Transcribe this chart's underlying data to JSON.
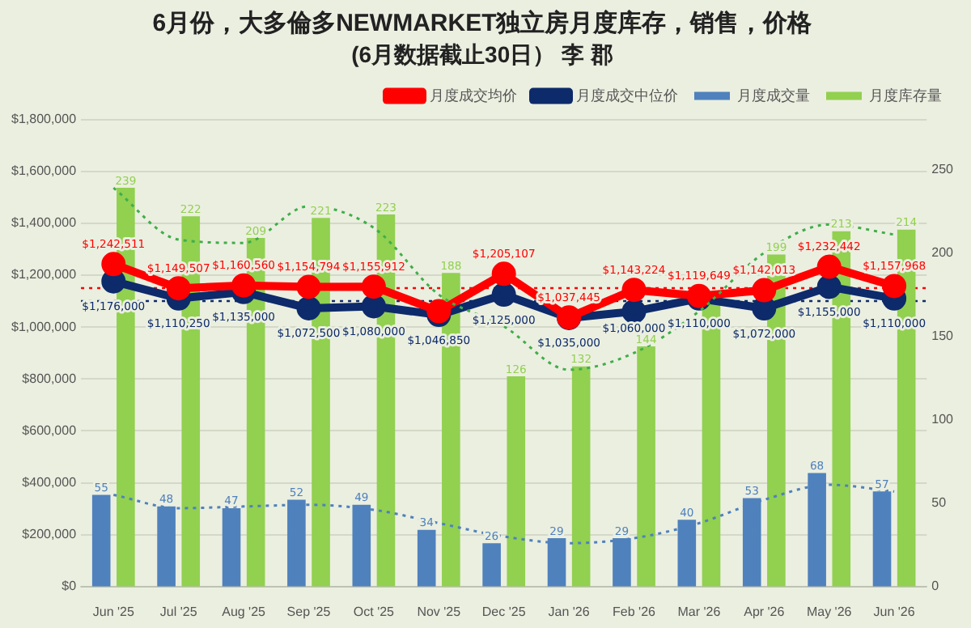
{
  "chart_data": {
    "type": "bar",
    "title": "6月份，大多倫多NEWMARKET独立房月度库存，销售，价格",
    "subtitle": "(6月数据截止30日） 李 郡",
    "categories": [
      "Jun '25",
      "Jul '25",
      "Aug '25",
      "Sep '25",
      "Oct '25",
      "Nov '25",
      "Dec '25",
      "Jan '26",
      "Feb '26",
      "Mar '26",
      "Apr '26",
      "May '26",
      "Jun '26"
    ],
    "series": [
      {
        "name": "月度成交量",
        "axis": "y2",
        "color": "#4f81bd",
        "values": [
          55,
          48,
          47,
          52,
          49,
          34,
          26,
          29,
          29,
          40,
          53,
          68,
          57
        ],
        "value_labels": [
          "55",
          "48",
          "47",
          "52",
          "49",
          "34",
          "26",
          "29",
          "29",
          "40",
          "53",
          "68",
          "57"
        ]
      },
      {
        "name": "月度库存量",
        "axis": "y2",
        "color": "#92d050",
        "values": [
          239,
          222,
          209,
          221,
          223,
          188,
          126,
          132,
          144,
          172,
          199,
          213,
          214
        ],
        "value_labels": [
          "239",
          "222",
          "209",
          "221",
          "223",
          "188",
          "126",
          "132",
          "144",
          null,
          "199",
          "213",
          "214"
        ]
      },
      {
        "name": "月度成交中位价",
        "type": "line",
        "color": "#0d2a6b",
        "marker": "circle",
        "values": [
          1176000,
          1110250,
          1135000,
          1072500,
          1080000,
          1046850,
          1125000,
          1035000,
          1060000,
          1110000,
          1072000,
          1155000,
          1110000
        ],
        "value_labels": [
          "$1,176,000",
          "$1,110,250",
          "$1,135,000",
          "$1,072,500",
          "$1,080,000",
          "$1,046,850",
          "$1,125,000",
          "$1,035,000",
          "$1,060,000",
          "$1,110,000",
          "$1,072,000",
          "$1,155,000",
          "$1,110,000"
        ]
      },
      {
        "name": "月度成交均价",
        "type": "line",
        "color": "#ff0000",
        "marker": "circle",
        "values": [
          1242511,
          1149507,
          1160560,
          1154794,
          1155912,
          1061000,
          1205107,
          1037445,
          1143224,
          1119649,
          1142013,
          1232442,
          1157968
        ],
        "value_labels": [
          "$1,242,511",
          "$1,149,507",
          "$1,160,560",
          "$1,154,794",
          "$1,155,912",
          null,
          "$1,205,107",
          "$1,037,445",
          "$1,143,224",
          "$1,119,649",
          "$1,142,013",
          "$1,232,442",
          "$1,157,968"
        ]
      },
      {
        "type": "line",
        "axis": "y2",
        "color": "#3fae49",
        "line_style": "dotted",
        "marker": "none",
        "values": [
          239,
          208,
          206,
          228,
          215,
          175,
          156,
          130,
          140,
          165,
          200,
          217,
          211
        ]
      },
      {
        "type": "line",
        "axis": "y2",
        "color": "#4f81bd",
        "line_style": "dotted",
        "marker": "none",
        "values": [
          55,
          47,
          48,
          49,
          46,
          38,
          30,
          26,
          29,
          38,
          52,
          61,
          57
        ]
      }
    ],
    "ref_lines": [
      {
        "axis": "y",
        "value": 1150000,
        "color": "#ff0000",
        "line_style": "dotted"
      },
      {
        "axis": "y",
        "value": 1100000,
        "color": "#0d2a6b",
        "line_style": "dotted"
      }
    ],
    "ylim": [
      0,
      1800000
    ],
    "yticks": [
      {
        "value": 0,
        "label": "$0"
      },
      {
        "value": 200000,
        "label": "$200,000"
      },
      {
        "value": 400000,
        "label": "$400,000"
      },
      {
        "value": 600000,
        "label": "$600,000"
      },
      {
        "value": 800000,
        "label": "$800,000"
      },
      {
        "value": 1000000,
        "label": "$1,000,000"
      },
      {
        "value": 1200000,
        "label": "$1,200,000"
      },
      {
        "value": 1400000,
        "label": "$1,400,000"
      },
      {
        "value": 1600000,
        "label": "$1,600,000"
      },
      {
        "value": 1800000,
        "label": "$1,800,000"
      }
    ],
    "y2lim": [
      0,
      280
    ],
    "y2ticks": [
      0,
      50,
      100,
      150,
      200,
      250
    ],
    "grid": "y",
    "legend": "top right"
  }
}
